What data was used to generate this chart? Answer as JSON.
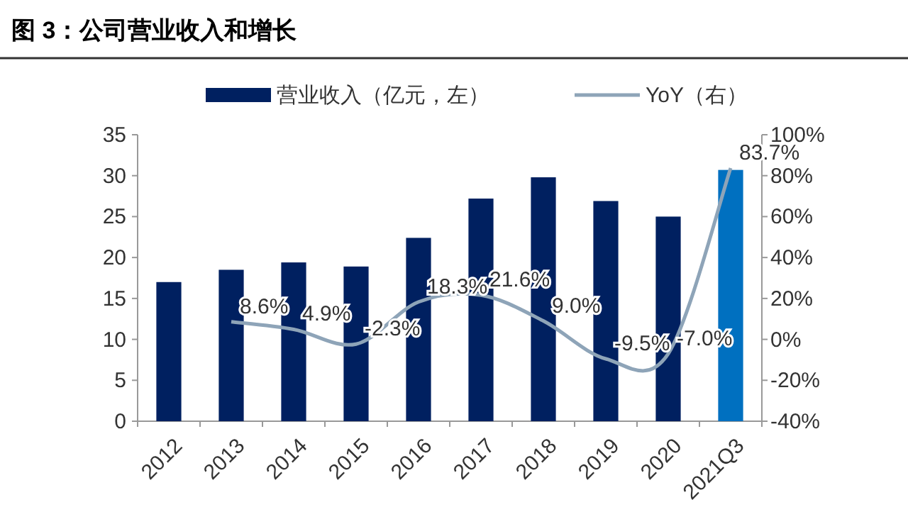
{
  "chart_data": {
    "type": "bar",
    "title": "图 3：公司营业收入和增长",
    "categories": [
      "2012",
      "2013",
      "2014",
      "2015",
      "2016",
      "2017",
      "2018",
      "2019",
      "2020",
      "2021Q3"
    ],
    "series": [
      {
        "name": "营业收入（亿元，左）",
        "color": "#002060",
        "colors": [
          "#002060",
          "#002060",
          "#002060",
          "#002060",
          "#002060",
          "#002060",
          "#002060",
          "#002060",
          "#002060",
          "#0070c0"
        ],
        "values": [
          17.0,
          18.5,
          19.4,
          18.9,
          22.4,
          27.2,
          29.8,
          26.9,
          25.0,
          30.7
        ]
      },
      {
        "name": "YoY（右）",
        "type": "line",
        "axis": "y2",
        "color": "#8ea4b8",
        "values": [
          null,
          8.6,
          4.9,
          -2.3,
          18.3,
          21.6,
          9.0,
          -9.5,
          -7.0,
          83.7
        ],
        "value_labels": [
          null,
          "8.6%",
          "4.9%",
          "-2.3%",
          "18.3%",
          "21.6%",
          "9.0%",
          "-9.5%",
          "-7.0%",
          "83.7%"
        ]
      }
    ],
    "ylim": [
      0,
      35
    ],
    "yticks": [
      0,
      5,
      10,
      15,
      20,
      25,
      30,
      35
    ],
    "y2lim": [
      -40,
      100
    ],
    "y2ticks": [
      {
        "value": -40,
        "label": "-40%"
      },
      {
        "value": -20,
        "label": "-20%"
      },
      {
        "value": 0,
        "label": "0%"
      },
      {
        "value": 20,
        "label": "20%"
      },
      {
        "value": 40,
        "label": "40%"
      },
      {
        "value": 60,
        "label": "60%"
      },
      {
        "value": 80,
        "label": "80%"
      },
      {
        "value": 100,
        "label": "100%"
      }
    ],
    "legend": "top",
    "grid": false,
    "marker": "none",
    "line_style": "solid"
  }
}
